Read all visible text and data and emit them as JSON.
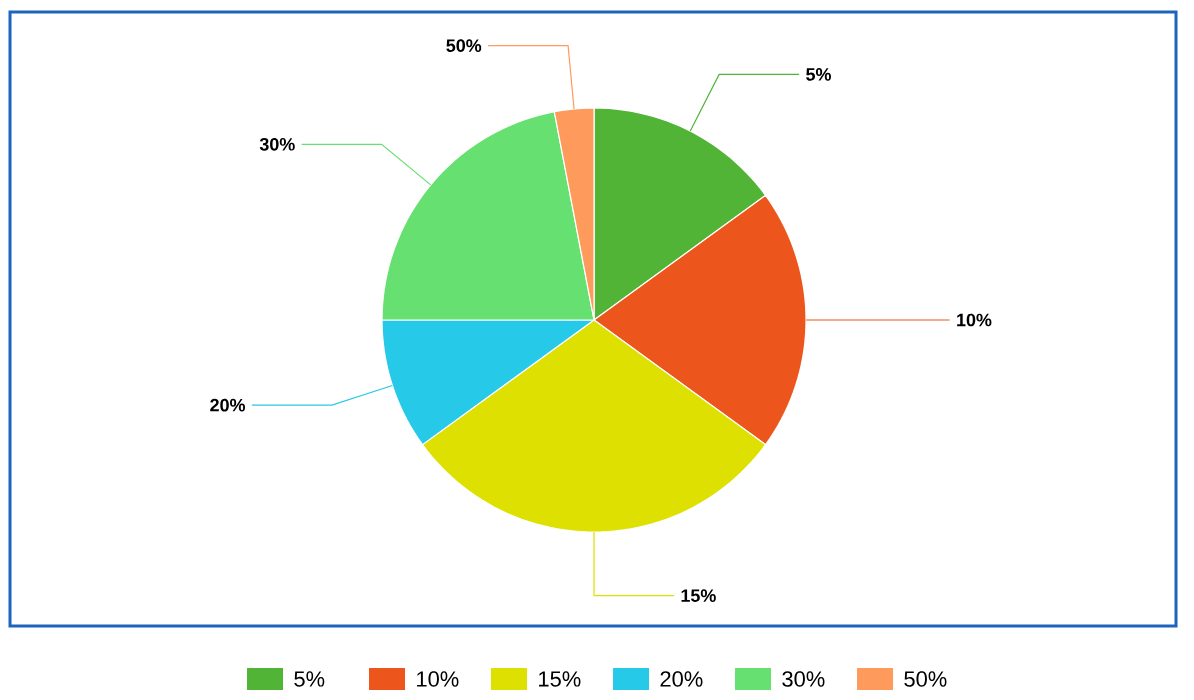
{
  "chart_data": {
    "type": "pie",
    "categories": [
      "5%",
      "10%",
      "15%",
      "20%",
      "30%",
      "50%"
    ],
    "values": [
      15,
      20,
      30,
      10,
      22,
      3
    ],
    "colors": [
      "#52b436",
      "#ec561c",
      "#dde000",
      "#27c9e8",
      "#66e070",
      "#fd9a5c"
    ],
    "legend": "bottom"
  }
}
